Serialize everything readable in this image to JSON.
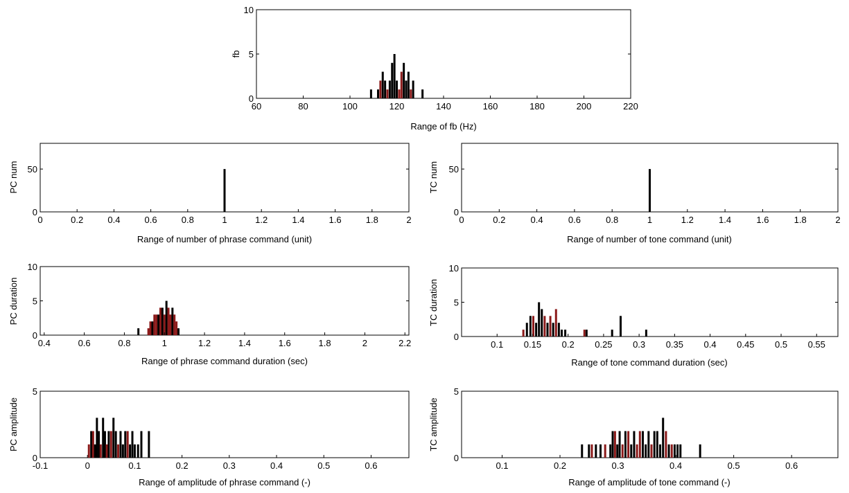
{
  "colors": {
    "primary": "#000000",
    "secondary": "#8b1a1a"
  },
  "chart_data": [
    {
      "id": "fb",
      "type": "bar",
      "xlabel": "Range of fb (Hz)",
      "ylabel": "fb",
      "xlim": [
        60,
        220
      ],
      "ylim": [
        0,
        10
      ],
      "xticks": [
        60,
        80,
        100,
        120,
        140,
        160,
        180,
        200,
        220
      ],
      "yticks": [
        0,
        5,
        10
      ],
      "bars": [
        {
          "x": 109,
          "y": 1,
          "c": "k"
        },
        {
          "x": 112,
          "y": 1,
          "c": "k"
        },
        {
          "x": 113,
          "y": 2,
          "c": "r"
        },
        {
          "x": 114,
          "y": 3,
          "c": "k"
        },
        {
          "x": 115,
          "y": 2,
          "c": "k"
        },
        {
          "x": 116,
          "y": 1,
          "c": "r"
        },
        {
          "x": 117,
          "y": 2,
          "c": "k"
        },
        {
          "x": 118,
          "y": 4,
          "c": "k"
        },
        {
          "x": 119,
          "y": 5,
          "c": "k"
        },
        {
          "x": 120,
          "y": 2,
          "c": "k"
        },
        {
          "x": 121,
          "y": 1,
          "c": "r"
        },
        {
          "x": 122,
          "y": 3,
          "c": "r"
        },
        {
          "x": 123,
          "y": 4,
          "c": "k"
        },
        {
          "x": 124,
          "y": 2,
          "c": "k"
        },
        {
          "x": 125,
          "y": 3,
          "c": "k"
        },
        {
          "x": 126,
          "y": 1,
          "c": "r"
        },
        {
          "x": 127,
          "y": 2,
          "c": "k"
        },
        {
          "x": 131,
          "y": 1,
          "c": "k"
        }
      ]
    },
    {
      "id": "pc-num",
      "type": "bar",
      "xlabel": "Range of number of phrase command (unit)",
      "ylabel": "PC num",
      "xlim": [
        0,
        2
      ],
      "ylim": [
        0,
        80
      ],
      "xticks": [
        0,
        0.2,
        0.4,
        0.6,
        0.8,
        1,
        1.2,
        1.4,
        1.6,
        1.8,
        2
      ],
      "yticks": [
        0,
        50
      ],
      "bars": [
        {
          "x": 1,
          "y": 50,
          "c": "k"
        }
      ]
    },
    {
      "id": "tc-num",
      "type": "bar",
      "xlabel": "Range of number of tone command (unit)",
      "ylabel": "TC num",
      "xlim": [
        0,
        2
      ],
      "ylim": [
        0,
        80
      ],
      "xticks": [
        0,
        0.2,
        0.4,
        0.6,
        0.8,
        1,
        1.2,
        1.4,
        1.6,
        1.8,
        2
      ],
      "yticks": [
        0,
        50
      ],
      "bars": [
        {
          "x": 1,
          "y": 50,
          "c": "k"
        }
      ]
    },
    {
      "id": "pc-duration",
      "type": "bar",
      "xlabel": "Range of phrase command duration (sec)",
      "ylabel": "PC duration",
      "xlim": [
        0.38,
        2.22
      ],
      "ylim": [
        0,
        10
      ],
      "xticks": [
        0.4,
        0.6,
        0.8,
        1,
        1.2,
        1.4,
        1.6,
        1.8,
        2,
        2.2
      ],
      "yticks": [
        0,
        5,
        10
      ],
      "bars": [
        {
          "x": 0.87,
          "y": 1,
          "c": "k"
        },
        {
          "x": 0.92,
          "y": 1,
          "c": "r"
        },
        {
          "x": 0.93,
          "y": 2,
          "c": "r"
        },
        {
          "x": 0.94,
          "y": 2,
          "c": "k"
        },
        {
          "x": 0.95,
          "y": 3,
          "c": "r"
        },
        {
          "x": 0.96,
          "y": 3,
          "c": "r"
        },
        {
          "x": 0.97,
          "y": 3,
          "c": "k"
        },
        {
          "x": 0.98,
          "y": 4,
          "c": "r"
        },
        {
          "x": 0.99,
          "y": 4,
          "c": "k"
        },
        {
          "x": 1.0,
          "y": 3,
          "c": "r"
        },
        {
          "x": 1.01,
          "y": 5,
          "c": "k"
        },
        {
          "x": 1.02,
          "y": 4,
          "c": "r"
        },
        {
          "x": 1.03,
          "y": 3,
          "c": "r"
        },
        {
          "x": 1.04,
          "y": 4,
          "c": "k"
        },
        {
          "x": 1.05,
          "y": 3,
          "c": "r"
        },
        {
          "x": 1.06,
          "y": 2,
          "c": "r"
        },
        {
          "x": 1.07,
          "y": 1,
          "c": "k"
        }
      ]
    },
    {
      "id": "tc-duration",
      "type": "bar",
      "xlabel": "Range of tone command duration (sec)",
      "ylabel": "TC duration",
      "xlim": [
        0.05,
        0.58
      ],
      "ylim": [
        0,
        10
      ],
      "xticks": [
        0.1,
        0.15,
        0.2,
        0.25,
        0.3,
        0.35,
        0.4,
        0.45,
        0.5,
        0.55
      ],
      "yticks": [
        0,
        5,
        10
      ],
      "bars": [
        {
          "x": 0.137,
          "y": 1,
          "c": "r"
        },
        {
          "x": 0.142,
          "y": 2,
          "c": "k"
        },
        {
          "x": 0.147,
          "y": 3,
          "c": "k"
        },
        {
          "x": 0.151,
          "y": 3,
          "c": "r"
        },
        {
          "x": 0.155,
          "y": 2,
          "c": "k"
        },
        {
          "x": 0.159,
          "y": 5,
          "c": "k"
        },
        {
          "x": 0.163,
          "y": 4,
          "c": "k"
        },
        {
          "x": 0.167,
          "y": 3,
          "c": "r"
        },
        {
          "x": 0.171,
          "y": 2,
          "c": "k"
        },
        {
          "x": 0.175,
          "y": 3,
          "c": "r"
        },
        {
          "x": 0.179,
          "y": 2,
          "c": "k"
        },
        {
          "x": 0.183,
          "y": 4,
          "c": "r"
        },
        {
          "x": 0.187,
          "y": 2,
          "c": "k"
        },
        {
          "x": 0.191,
          "y": 1,
          "c": "k"
        },
        {
          "x": 0.196,
          "y": 1,
          "c": "k"
        },
        {
          "x": 0.223,
          "y": 1,
          "c": "r"
        },
        {
          "x": 0.226,
          "y": 1,
          "c": "k"
        },
        {
          "x": 0.262,
          "y": 1,
          "c": "k"
        },
        {
          "x": 0.274,
          "y": 3,
          "c": "k"
        },
        {
          "x": 0.31,
          "y": 1,
          "c": "k"
        }
      ]
    },
    {
      "id": "pc-amplitude",
      "type": "bar",
      "xlabel": "Range of amplitude of phrase command (-)",
      "ylabel": "PC amplitude",
      "xlim": [
        -0.1,
        0.68
      ],
      "ylim": [
        0,
        5
      ],
      "xticks": [
        -0.1,
        0,
        0.1,
        0.2,
        0.3,
        0.4,
        0.5,
        0.6
      ],
      "yticks": [
        0,
        5
      ],
      "bars": [
        {
          "x": 0.003,
          "y": 1,
          "c": "r"
        },
        {
          "x": 0.008,
          "y": 2,
          "c": "k"
        },
        {
          "x": 0.012,
          "y": 2,
          "c": "r"
        },
        {
          "x": 0.016,
          "y": 1,
          "c": "k"
        },
        {
          "x": 0.02,
          "y": 3,
          "c": "k"
        },
        {
          "x": 0.024,
          "y": 2,
          "c": "k"
        },
        {
          "x": 0.028,
          "y": 1,
          "c": "r"
        },
        {
          "x": 0.033,
          "y": 3,
          "c": "k"
        },
        {
          "x": 0.037,
          "y": 2,
          "c": "k"
        },
        {
          "x": 0.041,
          "y": 1,
          "c": "r"
        },
        {
          "x": 0.045,
          "y": 2,
          "c": "k"
        },
        {
          "x": 0.05,
          "y": 2,
          "c": "r"
        },
        {
          "x": 0.055,
          "y": 3,
          "c": "k"
        },
        {
          "x": 0.06,
          "y": 2,
          "c": "k"
        },
        {
          "x": 0.065,
          "y": 1,
          "c": "r"
        },
        {
          "x": 0.07,
          "y": 2,
          "c": "k"
        },
        {
          "x": 0.075,
          "y": 1,
          "c": "k"
        },
        {
          "x": 0.08,
          "y": 2,
          "c": "k"
        },
        {
          "x": 0.085,
          "y": 2,
          "c": "r"
        },
        {
          "x": 0.09,
          "y": 1,
          "c": "k"
        },
        {
          "x": 0.095,
          "y": 2,
          "c": "k"
        },
        {
          "x": 0.1,
          "y": 1,
          "c": "k"
        },
        {
          "x": 0.107,
          "y": 1,
          "c": "k"
        },
        {
          "x": 0.114,
          "y": 2,
          "c": "k"
        },
        {
          "x": 0.13,
          "y": 2,
          "c": "k"
        }
      ]
    },
    {
      "id": "tc-amplitude",
      "type": "bar",
      "xlabel": "Range of amplitude of tone command (-)",
      "ylabel": "TC amplitude",
      "xlim": [
        0.03,
        0.68
      ],
      "ylim": [
        0,
        5
      ],
      "xticks": [
        0.1,
        0.2,
        0.3,
        0.4,
        0.5,
        0.6
      ],
      "yticks": [
        0,
        5
      ],
      "bars": [
        {
          "x": 0.238,
          "y": 1,
          "c": "k"
        },
        {
          "x": 0.25,
          "y": 1,
          "c": "k"
        },
        {
          "x": 0.255,
          "y": 1,
          "c": "r"
        },
        {
          "x": 0.262,
          "y": 1,
          "c": "k"
        },
        {
          "x": 0.27,
          "y": 1,
          "c": "k"
        },
        {
          "x": 0.278,
          "y": 1,
          "c": "r"
        },
        {
          "x": 0.287,
          "y": 1,
          "c": "k"
        },
        {
          "x": 0.291,
          "y": 2,
          "c": "k"
        },
        {
          "x": 0.295,
          "y": 2,
          "c": "r"
        },
        {
          "x": 0.299,
          "y": 1,
          "c": "k"
        },
        {
          "x": 0.303,
          "y": 2,
          "c": "k"
        },
        {
          "x": 0.308,
          "y": 1,
          "c": "r"
        },
        {
          "x": 0.313,
          "y": 2,
          "c": "k"
        },
        {
          "x": 0.318,
          "y": 2,
          "c": "r"
        },
        {
          "x": 0.323,
          "y": 1,
          "c": "k"
        },
        {
          "x": 0.328,
          "y": 2,
          "c": "k"
        },
        {
          "x": 0.333,
          "y": 1,
          "c": "r"
        },
        {
          "x": 0.338,
          "y": 2,
          "c": "r"
        },
        {
          "x": 0.343,
          "y": 2,
          "c": "k"
        },
        {
          "x": 0.348,
          "y": 1,
          "c": "k"
        },
        {
          "x": 0.353,
          "y": 2,
          "c": "k"
        },
        {
          "x": 0.358,
          "y": 1,
          "c": "r"
        },
        {
          "x": 0.363,
          "y": 2,
          "c": "k"
        },
        {
          "x": 0.368,
          "y": 2,
          "c": "k"
        },
        {
          "x": 0.373,
          "y": 1,
          "c": "k"
        },
        {
          "x": 0.378,
          "y": 3,
          "c": "k"
        },
        {
          "x": 0.383,
          "y": 2,
          "c": "r"
        },
        {
          "x": 0.388,
          "y": 1,
          "c": "k"
        },
        {
          "x": 0.393,
          "y": 1,
          "c": "r"
        },
        {
          "x": 0.398,
          "y": 1,
          "c": "k"
        },
        {
          "x": 0.403,
          "y": 1,
          "c": "k"
        },
        {
          "x": 0.408,
          "y": 1,
          "c": "k"
        },
        {
          "x": 0.442,
          "y": 1,
          "c": "k"
        }
      ]
    }
  ]
}
